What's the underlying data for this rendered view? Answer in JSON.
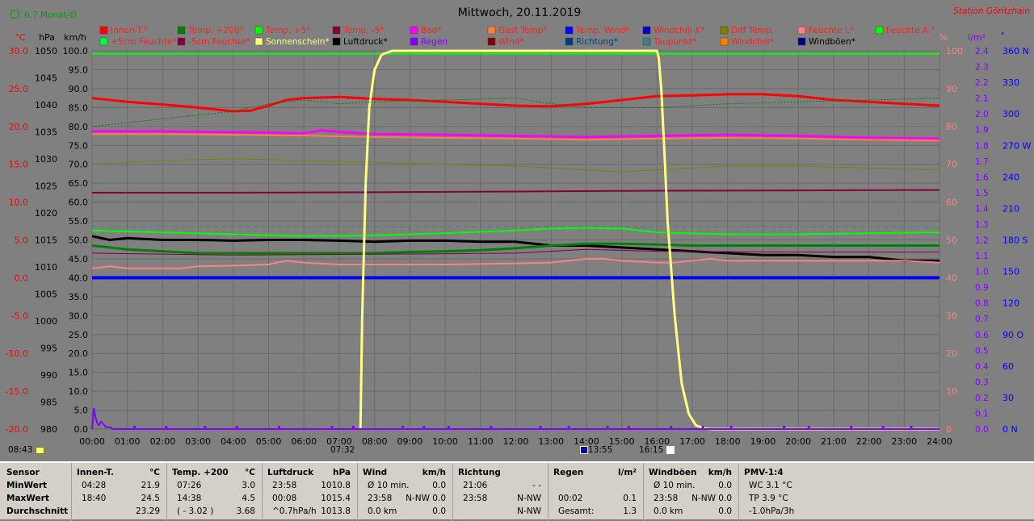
{
  "title": "Mittwoch, 20.11.2019",
  "station": "Station Göritzhain",
  "monthly_avg": "6.7 Monat-Ø",
  "axis_units": {
    "celsius": "°C",
    "hpa": "hPa",
    "kmh": "km/h",
    "percent": "%",
    "lm2": "l/m²",
    "deg": "°"
  },
  "legend": [
    {
      "label": "Innen-T.*",
      "color": "#ff0000"
    },
    {
      "label": "Temp. +200*",
      "color": "#008000"
    },
    {
      "label": "Temp. +5*",
      "color": "#00ff00"
    },
    {
      "label": "Temp. -5*",
      "color": "#800040"
    },
    {
      "label": "Bad*",
      "color": "#ff00ff"
    },
    {
      "label": "Gast Temp*",
      "color": "#ff8040"
    },
    {
      "label": "Temp. Wind*",
      "color": "#0000ff"
    },
    {
      "label": "Windchill X*",
      "color": "#0000c0"
    },
    {
      "label": "Diff Temp.",
      "color": "#808000"
    },
    {
      "label": "Feuchte I.*",
      "color": "#ff8080"
    },
    {
      "label": "Feuchte A.*",
      "color": "#00ff00"
    },
    {
      "label": "+5cm Feuchte*",
      "color": "#00ff40"
    },
    {
      "label": "-5cm Feuchte*",
      "color": "#800040"
    },
    {
      "label": "Sonnenschein*",
      "color": "#ffff80"
    },
    {
      "label": "Luftdruck*",
      "color": "#000000"
    },
    {
      "label": "Regen",
      "color": "#8000ff"
    },
    {
      "label": "Wind*",
      "color": "#800000"
    },
    {
      "label": "Richtung*",
      "color": "#004080"
    },
    {
      "label": "Taupunkt*",
      "color": "#408080"
    },
    {
      "label": "Windchill*",
      "color": "#ff8000"
    },
    {
      "label": "Windböen*",
      "color": "#000080"
    }
  ],
  "colors": {
    "temp_axis": "#ff0000",
    "hpa_axis": "#000000",
    "kmh_axis": "#000000",
    "percent_axis": "#ff8080",
    "rain_axis": "#8000ff",
    "dir_axis": "#0000ff"
  },
  "markers": {
    "sunrise": "07:32",
    "sunset": "16:15",
    "noon": "13:55",
    "start": "08:43"
  },
  "chart_data": {
    "type": "line",
    "x_ticks": [
      "00:00",
      "01:00",
      "02:00",
      "03:00",
      "04:00",
      "05:00",
      "06:00",
      "07:00",
      "08:00",
      "09:00",
      "10:00",
      "11:00",
      "12:00",
      "13:00",
      "14:00",
      "15:00",
      "16:00",
      "17:00",
      "18:00",
      "19:00",
      "20:00",
      "21:00",
      "22:00",
      "23:00",
      "24:00"
    ],
    "xlim": [
      0,
      24
    ],
    "axes": {
      "celsius": {
        "ylim": [
          -20,
          30
        ],
        "ticks": [
          "30.0",
          "25.0",
          "20.0",
          "15.0",
          "10.0",
          "5.0",
          "0.0",
          "-5.0",
          "-10.0",
          "-15.0",
          "-20.0"
        ]
      },
      "hpa": {
        "ylim": [
          980,
          1050
        ],
        "ticks": [
          "1050",
          "1045",
          "1040",
          "1035",
          "1030",
          "1025",
          "1020",
          "1015",
          "1010",
          "1005",
          "1000",
          "995",
          "990",
          "985",
          "980"
        ]
      },
      "kmh": {
        "ylim": [
          0,
          100
        ],
        "ticks": [
          "100.0",
          "95.0",
          "90.0",
          "85.0",
          "80.0",
          "75.0",
          "70.0",
          "65.0",
          "60.0",
          "55.0",
          "50.0",
          "45.0",
          "40.0",
          "35.0",
          "30.0",
          "25.0",
          "20.0",
          "15.0",
          "10.0",
          "5.0",
          "0.0"
        ]
      },
      "percent": {
        "ylim": [
          0,
          100
        ],
        "ticks": [
          "100",
          "90",
          "80",
          "70",
          "60",
          "50",
          "40",
          "30",
          "20",
          "10",
          "0"
        ]
      },
      "rain": {
        "ylim": [
          0,
          2.5
        ],
        "ticks": [
          "2.4",
          "2.3",
          "2.2",
          "2.1",
          "2.0",
          "1.9",
          "1.8",
          "1.7",
          "1.6",
          "1.5",
          "1.4",
          "1.3",
          "1.2",
          "1.1",
          "1.0",
          "0.9",
          "0.8",
          "0.7",
          "0.6",
          "0.5",
          "0.4",
          "0.3",
          "0.2",
          "0.1",
          "0.0"
        ]
      },
      "direction": {
        "ylim": [
          0,
          360
        ],
        "ticks": [
          "360 N",
          "330",
          "300",
          "270 W",
          "240",
          "210",
          "180 S",
          "150",
          "120",
          "90 O",
          "60",
          "30",
          "0 N"
        ]
      }
    },
    "series": [
      {
        "name": "Innen-T.*",
        "axis": "kmh",
        "color": "#ff0000",
        "width": 3,
        "x": [
          0,
          1,
          2,
          3,
          4,
          4.5,
          5,
          5.5,
          6,
          7,
          8,
          9,
          10,
          11,
          12,
          13,
          14,
          15,
          16,
          17,
          18,
          19,
          20,
          21,
          22,
          23,
          24
        ],
        "y": [
          87.5,
          86.5,
          85.8,
          85.0,
          84.0,
          84.2,
          85.5,
          87.0,
          87.5,
          87.8,
          87.3,
          87.0,
          86.5,
          86.0,
          85.5,
          85.3,
          86.0,
          87.0,
          88.0,
          88.2,
          88.5,
          88.5,
          88.0,
          87.0,
          86.5,
          86.0,
          85.5
        ]
      },
      {
        "name": "Feuchte A.*",
        "axis": "kmh",
        "color": "#00ff00",
        "width": 2,
        "x": [
          0,
          24
        ],
        "y": [
          99.2,
          99.2
        ]
      },
      {
        "name": "Bad*",
        "axis": "kmh",
        "color": "#ff00ff",
        "width": 3,
        "x": [
          0,
          2,
          4,
          6,
          6.5,
          7,
          8,
          10,
          12,
          14,
          16,
          18,
          20,
          22,
          24
        ],
        "y": [
          78.7,
          78.7,
          78.5,
          78.2,
          79.0,
          78.5,
          78.0,
          77.8,
          77.5,
          77.2,
          77.5,
          77.8,
          77.5,
          77.0,
          76.8
        ]
      },
      {
        "name": "Gast Temp*",
        "axis": "kmh",
        "color": "#ff8040",
        "width": 2,
        "x": [
          0,
          2,
          4,
          6,
          8,
          10,
          12,
          14,
          16,
          18,
          20,
          22,
          24
        ],
        "y": [
          78.0,
          78.0,
          77.8,
          77.6,
          77.2,
          77.0,
          76.8,
          76.5,
          76.8,
          77.0,
          76.8,
          76.5,
          76.3
        ]
      },
      {
        "name": "Diff Temp.",
        "axis": "kmh",
        "color": "#808000",
        "width": 1,
        "x": [
          0,
          2,
          4,
          6,
          8,
          10,
          12,
          14,
          15,
          16,
          17,
          18,
          20,
          22,
          24
        ],
        "y": [
          70.0,
          71.0,
          71.5,
          71.0,
          70.5,
          70.0,
          69.5,
          68.5,
          68.0,
          68.5,
          69.0,
          69.5,
          69.5,
          69.0,
          68.5
        ]
      },
      {
        "name": "Temp. -5*",
        "axis": "kmh",
        "color": "#800040",
        "width": 2,
        "x": [
          0,
          4,
          8,
          12,
          16,
          20,
          24
        ],
        "y": [
          62.5,
          62.5,
          62.6,
          62.8,
          63.0,
          63.1,
          63.2
        ]
      },
      {
        "name": "Taupunkt* (dash)",
        "axis": "kmh",
        "color": "#408080",
        "width": 1,
        "dash": "6,4",
        "x": [
          0,
          24
        ],
        "y": [
          53.5,
          53.5
        ]
      },
      {
        "name": "Temp. +5*",
        "axis": "kmh",
        "color": "#00ff00",
        "width": 2,
        "x": [
          0,
          2,
          4,
          6,
          8,
          10,
          12,
          13,
          14,
          15,
          16,
          18,
          20,
          22,
          24
        ],
        "y": [
          52.5,
          52.0,
          51.5,
          51.0,
          51.2,
          51.8,
          52.5,
          53.0,
          53.2,
          53.0,
          52.0,
          51.5,
          51.5,
          51.8,
          52.0
        ]
      },
      {
        "name": "Luftdruck*",
        "axis": "kmh",
        "color": "#000000",
        "width": 3,
        "x": [
          0,
          0.5,
          1,
          2,
          3,
          4,
          5,
          6,
          7,
          8,
          9,
          10,
          11,
          12,
          13,
          14,
          15,
          16,
          17,
          18,
          19,
          20,
          21,
          22,
          23,
          24
        ],
        "y": [
          51.0,
          50.0,
          50.5,
          50.0,
          50.0,
          49.8,
          50.0,
          50.0,
          49.8,
          49.5,
          49.8,
          49.8,
          49.5,
          49.5,
          48.5,
          48.5,
          48.0,
          47.5,
          47.0,
          46.5,
          46.0,
          46.0,
          45.5,
          45.5,
          44.5,
          44.5
        ]
      },
      {
        "name": "Temp. +200*",
        "axis": "kmh",
        "color": "#008000",
        "width": 3,
        "x": [
          0,
          1,
          2,
          3,
          4,
          5,
          6,
          7,
          8,
          9,
          10,
          11,
          12,
          13,
          14,
          15,
          16,
          17,
          18,
          19,
          20,
          21,
          22,
          23,
          24
        ],
        "y": [
          48.5,
          47.5,
          47.0,
          46.5,
          46.5,
          46.5,
          46.5,
          46.5,
          46.5,
          46.8,
          47.0,
          47.3,
          47.8,
          48.5,
          49.0,
          49.0,
          48.8,
          48.5,
          48.5,
          48.5,
          48.5,
          48.5,
          48.5,
          48.5,
          48.5
        ]
      },
      {
        "name": "Windchill*",
        "axis": "kmh",
        "color": "#800040",
        "width": 1,
        "x": [
          0,
          4,
          8,
          12,
          14,
          16,
          20,
          24
        ],
        "y": [
          46.5,
          46.0,
          46.2,
          46.5,
          47.5,
          47.0,
          46.8,
          46.8
        ]
      },
      {
        "name": "Feuchte I.*",
        "axis": "kmh",
        "color": "#ff8080",
        "width": 2,
        "x": [
          0,
          0.5,
          1,
          2,
          2.5,
          3,
          4,
          5,
          5.5,
          6,
          7,
          8,
          10,
          12,
          13,
          14,
          14.5,
          15,
          16,
          16.5,
          17,
          17.5,
          18,
          20,
          22,
          23,
          24
        ],
        "y": [
          42.5,
          43.0,
          42.5,
          42.5,
          42.5,
          43.0,
          43.2,
          43.5,
          44.5,
          44.0,
          43.5,
          43.5,
          43.5,
          43.8,
          44.0,
          45.0,
          45.0,
          44.5,
          44.0,
          44.0,
          44.5,
          45.0,
          44.5,
          44.5,
          44.5,
          44.5,
          44.0
        ]
      },
      {
        "name": "Windböen*",
        "axis": "kmh",
        "color": "#0000ff",
        "width": 4,
        "x": [
          0,
          24
        ],
        "y": [
          40.0,
          40.0
        ]
      },
      {
        "name": "Sonnenschein*",
        "axis": "kmh",
        "color": "#ffff80",
        "width": 3,
        "x": [
          7.6,
          7.65,
          7.75,
          7.85,
          8.0,
          8.2,
          8.5,
          9,
          16,
          16.05,
          16.12,
          16.2,
          16.3,
          16.5,
          16.7,
          16.9,
          17.1,
          17.3,
          17.5,
          24
        ],
        "y": [
          0,
          30,
          65,
          85,
          95,
          99,
          100,
          100,
          100,
          98,
          90,
          75,
          55,
          30,
          12,
          4,
          1,
          0.3,
          0,
          0
        ]
      },
      {
        "name": "Regen",
        "axis": "kmh",
        "color": "#8000ff",
        "width": 2,
        "x": [
          0,
          0.05,
          0.1,
          0.15,
          0.2,
          0.25,
          0.3,
          0.35,
          0.4,
          0.5,
          0.6,
          1,
          24
        ],
        "y": [
          0,
          5.5,
          3,
          1.5,
          1,
          2,
          1.5,
          1,
          0.5,
          0.5,
          0,
          0,
          0
        ]
      }
    ]
  },
  "table": {
    "row_labels": [
      "Sensor",
      "MinWert",
      "MaxWert",
      "Durchschnitt"
    ],
    "columns": [
      {
        "name": "Innen-T.",
        "unit": "°C",
        "rows": [
          [
            "04:28",
            "21.9"
          ],
          [
            "18:40",
            "24.5"
          ],
          [
            "",
            "23.29"
          ]
        ]
      },
      {
        "name": "Temp. +200",
        "unit": "°C",
        "rows": [
          [
            "07:26",
            "3.0"
          ],
          [
            "14:38",
            "4.5"
          ],
          [
            "( - 3.02 )",
            "3.68"
          ]
        ]
      },
      {
        "name": "Luftdruck",
        "unit": "hPa",
        "rows": [
          [
            "23:58",
            "1010.8"
          ],
          [
            "00:08",
            "1015.4"
          ],
          [
            "^0.7hPa/h",
            "1013.8"
          ]
        ]
      },
      {
        "name": "Wind",
        "unit": "km/h",
        "rows": [
          [
            "Ø 10 min.",
            "0.0"
          ],
          [
            "23:58",
            "N-NW 0.0"
          ],
          [
            "0.0 km",
            "0.0"
          ]
        ]
      },
      {
        "name": "Richtung",
        "unit": "",
        "rows": [
          [
            "21:06",
            "- -"
          ],
          [
            "23:58",
            "N-NW"
          ],
          [
            "",
            "N-NW"
          ]
        ]
      },
      {
        "name": "Regen",
        "unit": "l/m²",
        "rows": [
          [
            "",
            ""
          ],
          [
            "00:02",
            "0.1"
          ],
          [
            "Gesamt:",
            "1.3"
          ]
        ]
      },
      {
        "name": "Windböen",
        "unit": "km/h",
        "rows": [
          [
            "Ø 10 min.",
            "0.0"
          ],
          [
            "23:58",
            "N-NW 0.0"
          ],
          [
            "0.0 km",
            "0.0"
          ]
        ]
      },
      {
        "name": "PMV-1:4",
        "unit": "",
        "rows": [
          [
            "WC 3.1 °C",
            ""
          ],
          [
            "TP 3.9 °C",
            ""
          ],
          [
            "-1.0hPa/3h",
            ""
          ]
        ]
      }
    ]
  }
}
